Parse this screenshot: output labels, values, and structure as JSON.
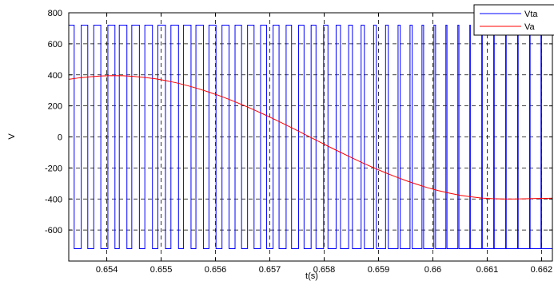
{
  "chart_data": {
    "type": "line",
    "title": "",
    "xlabel": "t(s)",
    "ylabel": "V",
    "xlim": [
      0.6533,
      0.6622
    ],
    "ylim": [
      -800,
      800
    ],
    "grid": true,
    "legend_position": "top-right",
    "x_ticks": [
      0.654,
      0.655,
      0.656,
      0.657,
      0.658,
      0.659,
      0.66,
      0.661,
      0.662
    ],
    "x_tick_labels": [
      "0.654",
      "0.655",
      "0.656",
      "0.657",
      "0.658",
      "0.659",
      "0.66",
      "0.661",
      "0.662"
    ],
    "y_ticks": [
      -600,
      -400,
      -200,
      0,
      200,
      400,
      600,
      800
    ],
    "y_tick_labels": [
      "-600",
      "-400",
      "-200",
      "0",
      "200",
      "400",
      "600",
      "800"
    ],
    "series": [
      {
        "name": "Vta",
        "color": "#0000ff",
        "style": "pwm",
        "amplitude": 720,
        "pulse_intervals": [
          [
            0.65329,
            0.6534
          ],
          [
            0.65353,
            0.65365
          ],
          [
            0.65376,
            0.65389
          ],
          [
            0.65402,
            0.65415
          ],
          [
            0.65423,
            0.65437
          ],
          [
            0.65446,
            0.6546
          ],
          [
            0.6547,
            0.65484
          ],
          [
            0.65494,
            0.65508
          ],
          [
            0.65518,
            0.65532
          ],
          [
            0.65541,
            0.65555
          ],
          [
            0.65564,
            0.65578
          ],
          [
            0.65588,
            0.65601
          ],
          [
            0.65612,
            0.65625
          ],
          [
            0.65636,
            0.65648
          ],
          [
            0.65659,
            0.65671
          ],
          [
            0.65683,
            0.65694
          ],
          [
            0.65706,
            0.65717
          ],
          [
            0.6573,
            0.6574
          ],
          [
            0.65753,
            0.65763
          ],
          [
            0.65776,
            0.65785
          ],
          [
            0.65799,
            0.65807
          ],
          [
            0.65822,
            0.6583
          ],
          [
            0.65845,
            0.65852
          ],
          [
            0.65868,
            0.65874
          ],
          [
            0.65891,
            0.65896
          ],
          [
            0.65913,
            0.65918
          ],
          [
            0.65936,
            0.6594
          ],
          [
            0.65958,
            0.65962
          ],
          [
            0.6598,
            0.65983
          ],
          [
            0.66002,
            0.66005
          ],
          [
            0.66024,
            0.66026
          ],
          [
            0.66046,
            0.66048
          ],
          [
            0.66068,
            0.66069
          ],
          [
            0.6609,
            0.66091
          ],
          [
            0.66112,
            0.66113
          ],
          [
            0.66134,
            0.66135
          ],
          [
            0.66156,
            0.66157
          ],
          [
            0.66178,
            0.66179
          ],
          [
            0.66199,
            0.662
          ]
        ]
      },
      {
        "name": "Va",
        "color": "#ff0000",
        "style": "line",
        "x": [
          0.6533,
          0.6535,
          0.6537,
          0.6539,
          0.6541,
          0.6543,
          0.6545,
          0.6547,
          0.6549,
          0.6551,
          0.6553,
          0.6555,
          0.6557,
          0.6559,
          0.6561,
          0.6563,
          0.6565,
          0.6567,
          0.6569,
          0.6571,
          0.6573,
          0.6575,
          0.6577,
          0.6579,
          0.6581,
          0.6583,
          0.6585,
          0.6587,
          0.6589,
          0.6591,
          0.6593,
          0.6595,
          0.6597,
          0.6599,
          0.6601,
          0.6603,
          0.6605,
          0.6607,
          0.6609,
          0.6611,
          0.6613,
          0.6615,
          0.6617,
          0.6619,
          0.6621,
          0.6622
        ],
        "y": [
          371,
          381,
          388,
          393,
          395,
          394,
          390,
          383,
          374,
          362,
          347,
          329,
          309,
          286,
          262,
          235,
          206,
          176,
          144,
          111,
          77,
          42,
          6,
          -29,
          -65,
          -99,
          -133,
          -166,
          -197,
          -227,
          -255,
          -281,
          -305,
          -327,
          -346,
          -362,
          -376,
          -386,
          -394,
          -398,
          -400,
          -400,
          -399,
          -397,
          -396,
          -395
        ]
      }
    ]
  }
}
